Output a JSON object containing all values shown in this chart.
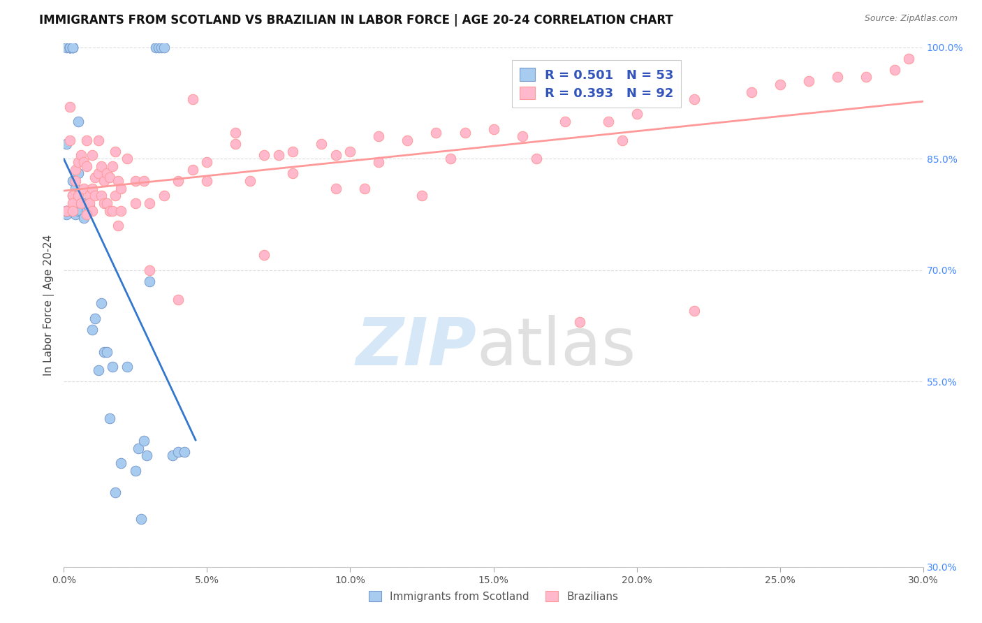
{
  "title": "IMMIGRANTS FROM SCOTLAND VS BRAZILIAN IN LABOR FORCE | AGE 20-24 CORRELATION CHART",
  "source": "Source: ZipAtlas.com",
  "ylabel": "In Labor Force | Age 20-24",
  "x_min": 0.0,
  "x_max": 0.3,
  "y_min": 0.3,
  "y_max": 1.005,
  "x_ticks": [
    0.0,
    0.05,
    0.1,
    0.15,
    0.2,
    0.25,
    0.3
  ],
  "x_tick_labels": [
    "0.0%",
    "5.0%",
    "10.0%",
    "15.0%",
    "20.0%",
    "25.0%",
    "30.0%"
  ],
  "y_ticks": [
    0.3,
    0.55,
    0.7,
    0.85,
    1.0
  ],
  "y_tick_labels_right": [
    "30.0%",
    "55.0%",
    "70.0%",
    "85.0%",
    "100.0%"
  ],
  "scotland_color": "#a8ccf0",
  "scotland_edge": "#7799cc",
  "brazilian_color": "#ffb8cc",
  "brazilian_edge": "#ff9999",
  "scotland_R": 0.501,
  "scotland_N": 53,
  "brazilian_R": 0.393,
  "brazilian_N": 92,
  "scotland_line_color": "#3377cc",
  "brazilian_line_color": "#ff9999",
  "legend_R_color": "#3355bb",
  "legend_N_color": "#33aa33",
  "right_axis_color": "#4488ff",
  "background_color": "#ffffff",
  "grid_color": "#dddddd",
  "scotland_x": [
    0.001,
    0.001,
    0.001,
    0.001,
    0.001,
    0.002,
    0.002,
    0.002,
    0.002,
    0.002,
    0.003,
    0.003,
    0.003,
    0.003,
    0.003,
    0.004,
    0.004,
    0.004,
    0.004,
    0.005,
    0.005,
    0.005,
    0.006,
    0.006,
    0.007,
    0.007,
    0.008,
    0.009,
    0.01,
    0.011,
    0.012,
    0.013,
    0.014,
    0.015,
    0.016,
    0.017,
    0.018,
    0.02,
    0.022,
    0.025,
    0.026,
    0.027,
    0.028,
    0.029,
    0.03,
    0.032,
    0.033,
    0.034,
    0.035,
    0.038,
    0.04,
    0.042,
    0.001
  ],
  "scotland_y": [
    0.775,
    0.78,
    0.78,
    0.78,
    1.0,
    1.0,
    1.0,
    1.0,
    1.0,
    1.0,
    1.0,
    1.0,
    1.0,
    0.82,
    0.8,
    0.81,
    0.8,
    0.79,
    0.775,
    0.9,
    0.83,
    0.78,
    0.785,
    0.78,
    0.79,
    0.77,
    0.78,
    0.785,
    0.62,
    0.635,
    0.565,
    0.655,
    0.59,
    0.59,
    0.5,
    0.57,
    0.4,
    0.44,
    0.57,
    0.43,
    0.46,
    0.365,
    0.47,
    0.45,
    0.685,
    1.0,
    1.0,
    1.0,
    1.0,
    0.45,
    0.455,
    0.455,
    0.87
  ],
  "brazil_x": [
    0.001,
    0.002,
    0.002,
    0.003,
    0.003,
    0.003,
    0.004,
    0.004,
    0.005,
    0.005,
    0.006,
    0.006,
    0.007,
    0.007,
    0.008,
    0.008,
    0.009,
    0.009,
    0.01,
    0.01,
    0.011,
    0.011,
    0.012,
    0.012,
    0.013,
    0.013,
    0.014,
    0.014,
    0.015,
    0.015,
    0.016,
    0.016,
    0.017,
    0.017,
    0.018,
    0.018,
    0.019,
    0.019,
    0.02,
    0.02,
    0.022,
    0.025,
    0.028,
    0.03,
    0.035,
    0.04,
    0.045,
    0.05,
    0.06,
    0.07,
    0.08,
    0.09,
    0.1,
    0.11,
    0.12,
    0.13,
    0.14,
    0.15,
    0.16,
    0.175,
    0.19,
    0.2,
    0.22,
    0.24,
    0.25,
    0.26,
    0.27,
    0.28,
    0.29,
    0.295,
    0.18,
    0.22,
    0.135,
    0.045,
    0.06,
    0.075,
    0.095,
    0.11,
    0.165,
    0.195,
    0.125,
    0.04,
    0.05,
    0.065,
    0.08,
    0.095,
    0.105,
    0.07,
    0.03,
    0.025,
    0.01,
    0.008
  ],
  "brazil_y": [
    0.78,
    0.875,
    0.92,
    0.8,
    0.79,
    0.78,
    0.835,
    0.82,
    0.845,
    0.8,
    0.855,
    0.79,
    0.845,
    0.81,
    0.875,
    0.84,
    0.8,
    0.79,
    0.855,
    0.81,
    0.825,
    0.8,
    0.875,
    0.83,
    0.84,
    0.8,
    0.82,
    0.79,
    0.83,
    0.79,
    0.825,
    0.78,
    0.84,
    0.78,
    0.86,
    0.8,
    0.82,
    0.76,
    0.81,
    0.78,
    0.85,
    0.82,
    0.82,
    0.79,
    0.8,
    0.82,
    0.835,
    0.845,
    0.87,
    0.855,
    0.86,
    0.87,
    0.86,
    0.88,
    0.875,
    0.885,
    0.885,
    0.89,
    0.88,
    0.9,
    0.9,
    0.91,
    0.93,
    0.94,
    0.95,
    0.955,
    0.96,
    0.96,
    0.97,
    0.985,
    0.63,
    0.645,
    0.85,
    0.93,
    0.885,
    0.855,
    0.855,
    0.845,
    0.85,
    0.875,
    0.8,
    0.66,
    0.82,
    0.82,
    0.83,
    0.81,
    0.81,
    0.72,
    0.7,
    0.79,
    0.78,
    0.775
  ]
}
